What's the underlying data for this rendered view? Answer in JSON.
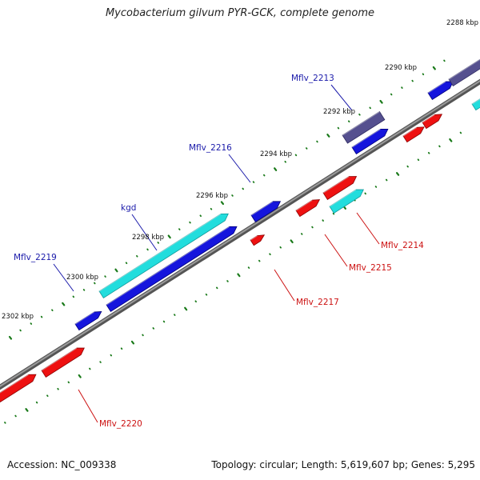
{
  "title": "Mycobacterium gilvum PYR-GCK, complete genome",
  "footer": {
    "accession": "Accession: NC_009338",
    "summary": "Topology: circular; Length: 5,619,607 bp; Genes: 5,295"
  },
  "colors": {
    "backbone": "#808080",
    "forward_cds": "#1515dd",
    "reverse_cds": "#ee1111",
    "highlight": "#22dddd",
    "other": "#55508f",
    "tick": "#1a7a1a",
    "label_forward": "#1a1aaa",
    "label_reverse": "#cc1111"
  },
  "ticks": [
    "2288 kbp",
    "2290 kbp",
    "2292 kbp",
    "2294 kbp",
    "2296 kbp",
    "2298 kbp",
    "2300 kbp",
    "2302 kbp"
  ],
  "gene_labels": [
    {
      "name": "Mflv_2213",
      "strand": "forward"
    },
    {
      "name": "Mflv_2216",
      "strand": "forward"
    },
    {
      "name": "kgd",
      "strand": "forward"
    },
    {
      "name": "Mflv_2219",
      "strand": "forward"
    },
    {
      "name": "Mflv_2214",
      "strand": "reverse"
    },
    {
      "name": "Mflv_2215",
      "strand": "reverse"
    },
    {
      "name": "Mflv_2217",
      "strand": "reverse"
    },
    {
      "name": "Mflv_2220",
      "strand": "reverse"
    }
  ]
}
